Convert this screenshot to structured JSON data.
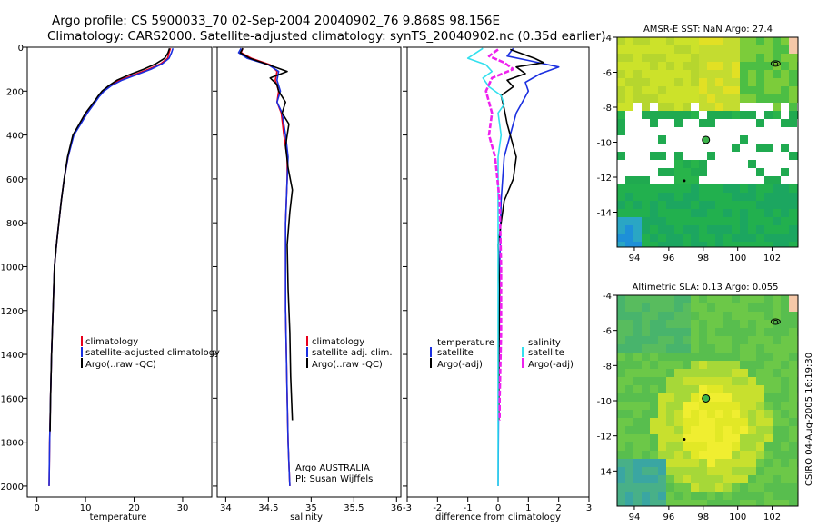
{
  "figure": {
    "title_line1": "Argo profile: CS 5900033_70 02-Sep-2004 20040902_76 9.868S 98.156E",
    "title_line2": "Climatology: CARS2000. Satellite-adjusted climatology: synTS_20040902.nc (0.35d earlier)",
    "side_credit": "CSIRO 04-Aug-2005 16:19:30",
    "argo_credit": "Argo AUSTRALIA",
    "pi_credit": "PI: Susan Wijffels"
  },
  "colors": {
    "red": "#e8001c",
    "blue": "#1a2fe0",
    "black": "#000000",
    "cyan": "#33e0ee",
    "magenta": "#ee22ee"
  },
  "chart_data": [
    {
      "type": "line",
      "id": "temperature-profile",
      "xlabel": "temperature",
      "ylabel": "",
      "xlim": [
        -2,
        36
      ],
      "ylim": [
        2050,
        0
      ],
      "xticks": [
        0,
        10,
        20,
        30
      ],
      "yticks": [
        0,
        200,
        400,
        600,
        800,
        1000,
        1200,
        1400,
        1600,
        1800,
        2000
      ],
      "legend": [
        "climatology",
        "satellite-adjusted climatology",
        "Argo(..raw -QC)"
      ],
      "series": [
        {
          "name": "climatology",
          "color": "red",
          "x": [
            27.5,
            27.2,
            26.9,
            25.5,
            23,
            20,
            17,
            15,
            13.5,
            12.6,
            11.8,
            10.2,
            8.9,
            7.5,
            6.4,
            5.6,
            5.0,
            4.5,
            4.0,
            3.6,
            3.3,
            3.0,
            2.8,
            2.6,
            2.5
          ],
          "y": [
            5,
            25,
            50,
            75,
            100,
            125,
            150,
            175,
            200,
            225,
            250,
            300,
            350,
            400,
            500,
            600,
            700,
            800,
            900,
            1000,
            1200,
            1400,
            1600,
            1800,
            2000
          ]
        },
        {
          "name": "satellite-adjusted climatology",
          "color": "blue",
          "x": [
            28.0,
            27.7,
            27.2,
            25.8,
            23.5,
            20.5,
            17.5,
            15.3,
            13.8,
            12.8,
            12.0,
            10.4,
            9.0,
            7.6,
            6.4,
            5.6,
            5.0,
            4.5,
            4.0,
            3.6,
            3.3,
            3.0,
            2.8,
            2.6,
            2.5
          ],
          "y": [
            5,
            25,
            50,
            75,
            100,
            125,
            150,
            175,
            200,
            225,
            250,
            300,
            350,
            400,
            500,
            600,
            700,
            800,
            900,
            1000,
            1200,
            1400,
            1600,
            1800,
            2000
          ]
        },
        {
          "name": "Argo(..raw -QC)",
          "color": "black",
          "x": [
            27.3,
            27.0,
            26.3,
            24.5,
            22,
            19,
            16.5,
            14.8,
            13.4,
            12.5,
            11.7,
            10.0,
            8.7,
            7.4,
            6.3,
            5.6,
            5.0,
            4.5,
            4.0,
            3.6,
            3.3,
            3.0,
            2.8,
            2.7
          ],
          "y": [
            5,
            25,
            50,
            75,
            100,
            125,
            150,
            175,
            200,
            225,
            250,
            300,
            350,
            400,
            500,
            600,
            700,
            800,
            900,
            1000,
            1200,
            1400,
            1600,
            1750
          ]
        }
      ]
    },
    {
      "type": "line",
      "id": "salinity-profile",
      "xlabel": "salinity",
      "xlim": [
        33.9,
        36.05
      ],
      "ylim": [
        2050,
        0
      ],
      "xticks": [
        34,
        34.5,
        35,
        35.5,
        36
      ],
      "xtick_labels": [
        "34",
        "34.5",
        "35",
        "35.5",
        "36"
      ],
      "legend": [
        "climatology",
        "satellite adj. clim.",
        "Argo(..raw -QC)"
      ],
      "series": [
        {
          "name": "climatology",
          "color": "red",
          "x": [
            34.2,
            34.18,
            34.3,
            34.52,
            34.6,
            34.58,
            34.62,
            34.6,
            34.65,
            34.68,
            34.72,
            34.72,
            34.71,
            34.7,
            34.7,
            34.7,
            34.71,
            34.72,
            34.73,
            34.74,
            34.75
          ],
          "y": [
            5,
            25,
            50,
            80,
            110,
            150,
            200,
            250,
            300,
            400,
            500,
            600,
            700,
            800,
            1000,
            1200,
            1400,
            1600,
            1800,
            1900,
            2000
          ]
        },
        {
          "name": "satellite adj. clim.",
          "color": "blue",
          "x": [
            34.18,
            34.15,
            34.25,
            34.5,
            34.62,
            34.6,
            34.64,
            34.6,
            34.66,
            34.7,
            34.73,
            34.72,
            34.71,
            34.7,
            34.7,
            34.7,
            34.71,
            34.72,
            34.73,
            34.74,
            34.75
          ],
          "y": [
            5,
            25,
            50,
            80,
            110,
            150,
            200,
            250,
            300,
            400,
            500,
            600,
            700,
            800,
            1000,
            1200,
            1400,
            1600,
            1800,
            1900,
            2000
          ]
        },
        {
          "name": "Argo(..raw -QC)",
          "color": "black",
          "x": [
            34.2,
            34.17,
            34.28,
            34.5,
            34.72,
            34.52,
            34.6,
            34.62,
            34.7,
            34.66,
            34.74,
            34.72,
            34.7,
            34.73,
            34.78,
            34.75,
            34.72,
            34.73,
            34.75,
            34.76,
            34.78
          ],
          "y": [
            5,
            25,
            50,
            80,
            110,
            140,
            170,
            200,
            250,
            300,
            350,
            400,
            450,
            550,
            650,
            750,
            900,
            1100,
            1300,
            1500,
            1700
          ]
        }
      ]
    },
    {
      "type": "line",
      "id": "difference-profile",
      "xlabel": "difference from climatology",
      "xlim": [
        -3,
        3
      ],
      "ylim": [
        2050,
        0
      ],
      "xticks": [
        -3,
        -2,
        -1,
        0,
        1,
        2,
        3
      ],
      "legend_left": [
        "temperature",
        "satellite",
        "Argo(-adj)"
      ],
      "legend_right": [
        "salinity",
        "satellite",
        "Argo(-adj)"
      ],
      "series": [
        {
          "name": "temperature satellite",
          "color": "blue",
          "x": [
            0.5,
            0.3,
            1.0,
            2.0,
            1.4,
            0.9,
            1.0,
            0.8,
            0.6,
            0.4,
            0.2,
            0.1,
            0.05,
            0.02,
            0.0
          ],
          "y": [
            5,
            40,
            60,
            90,
            120,
            160,
            200,
            250,
            300,
            400,
            500,
            700,
            1000,
            1500,
            2000
          ]
        },
        {
          "name": "temperature Argo(-adj)",
          "color": "black",
          "x": [
            0.4,
            0.8,
            1.2,
            1.5,
            0.6,
            0.9,
            0.3,
            0.5,
            0.1,
            0.2,
            0.3,
            0.6,
            0.5,
            0.2,
            0.1,
            0.0,
            0.05,
            0.03,
            0.02
          ],
          "y": [
            10,
            30,
            50,
            70,
            90,
            120,
            150,
            180,
            220,
            280,
            350,
            500,
            600,
            700,
            800,
            900,
            1100,
            1400,
            1700
          ]
        },
        {
          "name": "salinity satellite",
          "color": "cyan",
          "x": [
            -0.5,
            -1.0,
            -0.4,
            -0.2,
            -0.5,
            -0.3,
            0.1,
            0.2,
            0.0,
            0.1,
            0.0,
            0.0,
            0.0,
            0.0,
            0.0
          ],
          "y": [
            5,
            50,
            80,
            110,
            140,
            180,
            220,
            260,
            300,
            400,
            500,
            800,
            1200,
            1600,
            2000
          ]
        },
        {
          "name": "salinity Argo(-adj)",
          "color": "magenta",
          "x": [
            0.0,
            -0.3,
            0.2,
            0.5,
            -0.2,
            -0.4,
            -0.3,
            -0.2,
            -0.3,
            -0.1,
            0.05,
            0.1,
            0.1,
            0.05,
            0.05
          ],
          "y": [
            10,
            40,
            70,
            100,
            140,
            200,
            250,
            300,
            400,
            500,
            700,
            1000,
            1300,
            1600,
            1700
          ]
        }
      ]
    },
    {
      "type": "heatmap",
      "id": "sst-map",
      "title": "AMSR-E SST: NaN Argo: 27.4",
      "xlim": [
        93,
        103.5
      ],
      "ylim": [
        -16,
        -4
      ],
      "xticks": [
        94,
        96,
        98,
        100,
        102
      ],
      "yticks": [
        -4,
        -6,
        -8,
        -10,
        -12,
        -14
      ],
      "float_position": {
        "lon": 98.156,
        "lat": -9.868
      }
    },
    {
      "type": "heatmap",
      "id": "sla-map",
      "title": "Altimetric SLA: 0.13 Argo: 0.055",
      "xlim": [
        93,
        103.5
      ],
      "ylim": [
        -16,
        -4
      ],
      "xticks": [
        94,
        96,
        98,
        100,
        102
      ],
      "yticks": [
        -4,
        -6,
        -8,
        -10,
        -12,
        -14
      ],
      "float_position": {
        "lon": 98.156,
        "lat": -9.868
      }
    }
  ]
}
